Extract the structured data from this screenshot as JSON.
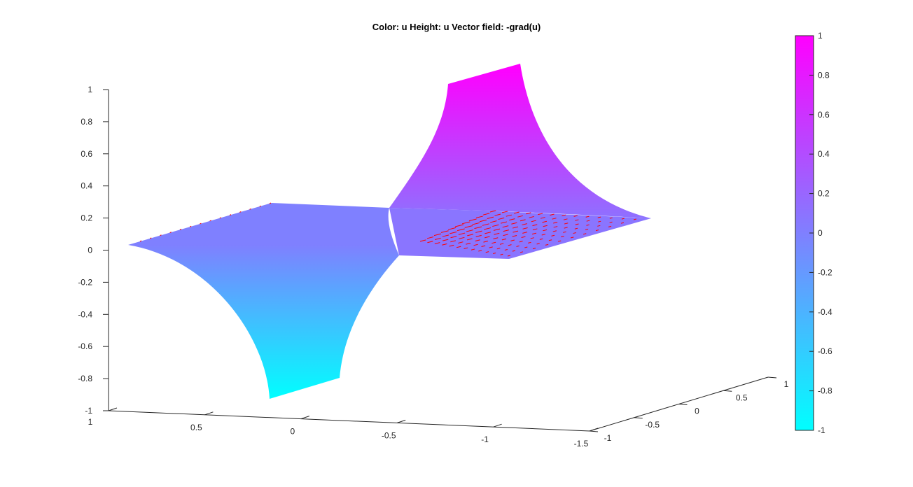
{
  "chart_data": {
    "type": "surface",
    "title": "Color: u  Height: u  Vector field: -grad(u)",
    "colormap": "cool",
    "color_low": "#00FFFF",
    "color_high": "#FF00FF",
    "vector_color": "#FF0000",
    "grid": false,
    "x_axis": {
      "range": [
        -1.5,
        1
      ],
      "ticks": [
        1,
        0.5,
        0,
        -0.5,
        -1,
        -1.5
      ],
      "tick_labels": [
        "1",
        "0.5",
        "0",
        "-0.5",
        "-1",
        "-1.5"
      ]
    },
    "y_axis": {
      "range": [
        -1,
        1
      ],
      "ticks": [
        -1,
        -0.5,
        0,
        0.5,
        1
      ],
      "tick_labels": [
        "-1",
        "-0.5",
        "0",
        "0.5",
        "1"
      ]
    },
    "z_axis": {
      "range": [
        -1,
        1
      ],
      "ticks": [
        1,
        0.8,
        0.6,
        0.4,
        0.2,
        0,
        -0.2,
        -0.4,
        -0.6,
        -0.8,
        -1
      ],
      "tick_labels": [
        "1",
        "0.8",
        "0.6",
        "0.4",
        "0.2",
        "0",
        "-0.2",
        "-0.4",
        "-0.6",
        "-0.8",
        "-1"
      ]
    },
    "colorbar": {
      "range": [
        -1,
        1
      ],
      "ticks": [
        1,
        0.8,
        0.6,
        0.4,
        0.2,
        0,
        -0.2,
        -0.4,
        -0.6,
        -0.8,
        -1
      ],
      "tick_labels": [
        "1",
        "0.8",
        "0.6",
        "0.4",
        "0.2",
        "0",
        "-0.2",
        "-0.4",
        "-0.6",
        "-0.8",
        "-1"
      ]
    }
  }
}
